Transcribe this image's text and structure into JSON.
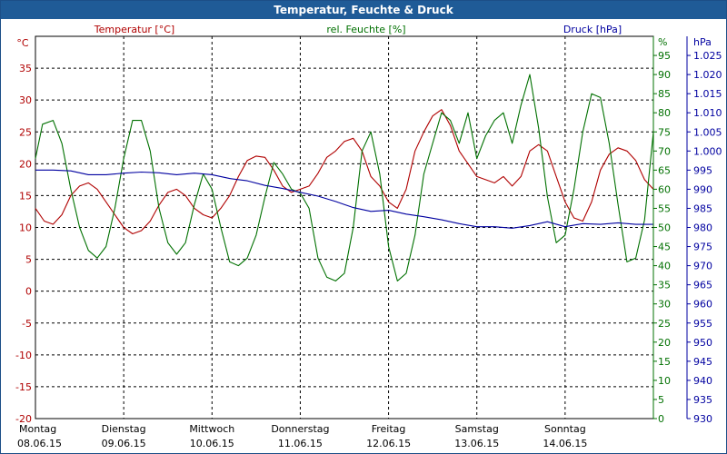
{
  "window": {
    "title": "Temperatur, Feuchte & Druck"
  },
  "chart_data": {
    "type": "line",
    "title": "Temperatur, Feuchte & Druck",
    "grid": true,
    "legend": [
      {
        "label": "Temperatur [°C]",
        "color": "#b00000"
      },
      {
        "label": "rel. Feuchte [%]",
        "color": "#007000"
      },
      {
        "label": "Druck [hPa]",
        "color": "#0000a0"
      }
    ],
    "axes": {
      "temperature": {
        "unit": "°C",
        "color": "#b00000",
        "range": [
          -20,
          40
        ],
        "ticks": [
          -20,
          -15,
          -10,
          -5,
          0,
          5,
          10,
          15,
          20,
          25,
          30,
          35
        ]
      },
      "humidity": {
        "unit": "%",
        "color": "#007000",
        "range": [
          0,
          100
        ],
        "ticks": [
          0,
          5,
          10,
          15,
          20,
          25,
          30,
          35,
          40,
          45,
          50,
          55,
          60,
          65,
          70,
          75,
          80,
          85,
          90,
          95
        ]
      },
      "pressure": {
        "unit": "hPa",
        "color": "#0000a0",
        "range": [
          930,
          1030
        ],
        "ticks": [
          "930",
          "935",
          "940",
          "945",
          "950",
          "955",
          "960",
          "965",
          "970",
          "975",
          "980",
          "985",
          "990",
          "995",
          "1.000",
          "1.005",
          "1.010",
          "1.015",
          "1.020",
          "1.025"
        ]
      }
    },
    "x_days": [
      {
        "weekday": "Montag",
        "date": "08.06.15"
      },
      {
        "weekday": "Dienstag",
        "date": "09.06.15"
      },
      {
        "weekday": "Mittwoch",
        "date": "10.06.15"
      },
      {
        "weekday": "Donnerstag",
        "date": "11.06.15"
      },
      {
        "weekday": "Freitag",
        "date": "12.06.15"
      },
      {
        "weekday": "Samstag",
        "date": "13.06.15"
      },
      {
        "weekday": "Sonntag",
        "date": "14.06.15"
      }
    ],
    "series": [
      {
        "name": "Temperatur [°C]",
        "axis": "temperature",
        "color": "#b00000",
        "x": [
          0,
          0.1,
          0.2,
          0.3,
          0.4,
          0.5,
          0.6,
          0.7,
          0.8,
          0.9,
          1.0,
          1.1,
          1.2,
          1.3,
          1.4,
          1.5,
          1.6,
          1.7,
          1.8,
          1.9,
          2.0,
          2.1,
          2.2,
          2.3,
          2.4,
          2.5,
          2.6,
          2.7,
          2.8,
          2.9,
          3.0,
          3.1,
          3.2,
          3.3,
          3.4,
          3.5,
          3.6,
          3.7,
          3.8,
          3.9,
          4.0,
          4.1,
          4.2,
          4.3,
          4.4,
          4.5,
          4.6,
          4.7,
          4.8,
          4.9,
          5.0,
          5.1,
          5.2,
          5.3,
          5.4,
          5.5,
          5.6,
          5.7,
          5.8,
          5.9,
          6.0,
          6.1,
          6.2,
          6.3,
          6.4,
          6.5,
          6.6,
          6.7,
          6.8,
          6.9,
          7.0
        ],
        "y": [
          13,
          11,
          10.5,
          12,
          15,
          16.5,
          17,
          16,
          14,
          12,
          10,
          9,
          9.5,
          11,
          13.5,
          15.5,
          16,
          15,
          13,
          12,
          11.5,
          13,
          15,
          18,
          20.5,
          21.2,
          21,
          19,
          16.5,
          15.5,
          16,
          16.5,
          18.5,
          21,
          22,
          23.5,
          24,
          22,
          18,
          16.5,
          14,
          13,
          16,
          22,
          25,
          27.5,
          28.5,
          26,
          22,
          20,
          18,
          17.5,
          17,
          18,
          16.5,
          18,
          22,
          23,
          22,
          18,
          14,
          11.5,
          11,
          14,
          19,
          21.5,
          22.5,
          22,
          20.5,
          17.5,
          16
        ]
      },
      {
        "name": "rel. Feuchte [%]",
        "axis": "humidity",
        "color": "#007000",
        "x": [
          0,
          0.08,
          0.2,
          0.3,
          0.4,
          0.5,
          0.6,
          0.7,
          0.8,
          0.9,
          1.0,
          1.1,
          1.2,
          1.3,
          1.4,
          1.5,
          1.6,
          1.7,
          1.8,
          1.9,
          2.0,
          2.1,
          2.2,
          2.3,
          2.4,
          2.5,
          2.6,
          2.7,
          2.8,
          2.9,
          3.0,
          3.1,
          3.2,
          3.3,
          3.4,
          3.5,
          3.6,
          3.7,
          3.8,
          3.9,
          4.0,
          4.1,
          4.2,
          4.3,
          4.4,
          4.5,
          4.6,
          4.7,
          4.8,
          4.9,
          5.0,
          5.1,
          5.2,
          5.3,
          5.4,
          5.5,
          5.6,
          5.7,
          5.8,
          5.9,
          6.0,
          6.1,
          6.2,
          6.3,
          6.4,
          6.5,
          6.6,
          6.7,
          6.8,
          6.9,
          7.0
        ],
        "y": [
          68,
          77,
          78,
          72,
          60,
          50,
          44,
          42,
          45,
          55,
          68,
          78,
          78,
          70,
          55,
          46,
          43,
          46,
          56,
          64,
          60,
          50,
          41,
          40,
          42,
          48,
          58,
          67,
          64,
          60,
          59,
          55,
          42,
          37,
          36,
          38,
          50,
          70,
          75,
          64,
          45,
          36,
          38,
          48,
          64,
          72,
          80,
          78,
          72,
          80,
          68,
          74,
          78,
          80,
          72,
          82,
          90,
          76,
          58,
          46,
          48,
          60,
          75,
          85,
          84,
          72,
          56,
          41,
          42,
          52,
          75
        ]
      },
      {
        "name": "Druck [hPa]",
        "axis": "pressure",
        "color": "#0000a0",
        "x": [
          0,
          0.2,
          0.4,
          0.6,
          0.8,
          1.0,
          1.2,
          1.4,
          1.6,
          1.8,
          2.0,
          2.2,
          2.4,
          2.6,
          2.8,
          3.0,
          3.2,
          3.4,
          3.6,
          3.8,
          4.0,
          4.2,
          4.4,
          4.6,
          4.8,
          5.0,
          5.2,
          5.4,
          5.6,
          5.8,
          6.0,
          6.2,
          6.4,
          6.6,
          6.8,
          7.0
        ],
        "y": [
          995,
          995,
          994.8,
          993.8,
          993.8,
          994.2,
          994.5,
          994.3,
          993.8,
          994.2,
          993.8,
          992.8,
          992.2,
          991,
          990.2,
          989.2,
          988.2,
          986.8,
          985.2,
          984.2,
          984.5,
          983.5,
          982.8,
          982,
          981,
          980.2,
          980.2,
          979.8,
          980.5,
          981.5,
          980.2,
          981,
          980.8,
          981.2,
          980.8,
          980.8
        ]
      }
    ]
  }
}
